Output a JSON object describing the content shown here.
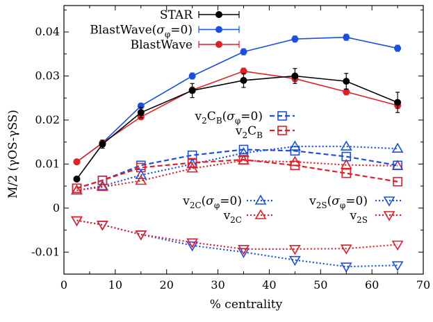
{
  "chart_data": {
    "type": "line",
    "xlabel": "% centrality",
    "ylabel": "M/2 (γOS-γSS)",
    "xlim": [
      0,
      70
    ],
    "ylim": [
      -0.015,
      0.046
    ],
    "x_ticks": [
      "0",
      "10",
      "20",
      "30",
      "40",
      "50",
      "60",
      "70"
    ],
    "y_ticks": [
      "-0.01",
      "0",
      "0.01",
      "0.02",
      "0.03",
      "0.04"
    ],
    "legend_top": [
      {
        "label": "STAR",
        "series": "STAR"
      },
      {
        "label": "BlastWave(σφ=0)",
        "series": "BW0"
      },
      {
        "label": "BlastWave",
        "series": "BW"
      }
    ],
    "legend_middle": [
      {
        "label": "v2CB(σφ=0)",
        "series": "CB0"
      },
      {
        "label": "v2CB",
        "series": "CB"
      }
    ],
    "legend_lower_left": [
      {
        "label": "v2C(σφ=0)",
        "series": "C0"
      },
      {
        "label": "v2C",
        "series": "C"
      }
    ],
    "legend_lower_right": [
      {
        "label": "v2S(σφ=0)",
        "series": "S0"
      },
      {
        "label": "v2S",
        "series": "S"
      }
    ],
    "series": [
      {
        "id": "STAR",
        "name": "STAR",
        "color": "#000000",
        "marker": "filled-circle",
        "line": "solid",
        "x": [
          2.5,
          7.5,
          15,
          25,
          35,
          45,
          55,
          65
        ],
        "y": [
          0.0066,
          0.0145,
          0.0217,
          0.0267,
          0.029,
          0.03,
          0.0288,
          0.024
        ],
        "err": [
          0.0003,
          0.0009,
          0.0012,
          0.0016,
          0.0016,
          0.0017,
          0.0018,
          0.0023
        ]
      },
      {
        "id": "BW0",
        "name": "BlastWave(σφ=0)",
        "color": "#1a4fe0",
        "marker": "filled-circle",
        "line": "solid",
        "x": [
          2.5,
          7.5,
          15,
          25,
          35,
          45,
          55,
          65
        ],
        "y": [
          0.0105,
          0.0148,
          0.0232,
          0.03,
          0.0355,
          0.0384,
          0.0388,
          0.0363
        ],
        "err": [
          0.0003,
          0.0005,
          0.0006,
          0.0007,
          0.0007,
          0.0007,
          0.0007,
          0.0007
        ]
      },
      {
        "id": "BW",
        "name": "BlastWave",
        "color": "#e01f26",
        "marker": "filled-circle",
        "line": "solid",
        "x": [
          2.5,
          7.5,
          15,
          25,
          35,
          45,
          55,
          65
        ],
        "y": [
          0.0105,
          0.0148,
          0.0207,
          0.0268,
          0.0311,
          0.0294,
          0.0264,
          0.0233
        ],
        "err": [
          0.0003,
          0.0005,
          0.0006,
          0.0007,
          0.0007,
          0.0007,
          0.0007,
          0.0007
        ]
      },
      {
        "id": "CB0",
        "name": "v2CB(σφ=0)",
        "color": "#1a4fe0",
        "marker": "open-square",
        "line": "dashed",
        "x": [
          2.5,
          7.5,
          15,
          25,
          35,
          45,
          55,
          65
        ],
        "y": [
          0.0045,
          0.0063,
          0.0097,
          0.012,
          0.0133,
          0.013,
          0.0117,
          0.0097
        ]
      },
      {
        "id": "CB",
        "name": "v2CB",
        "color": "#e01f26",
        "marker": "open-square",
        "line": "dashed",
        "x": [
          2.5,
          7.5,
          15,
          25,
          35,
          45,
          55,
          65
        ],
        "y": [
          0.0045,
          0.0063,
          0.0092,
          0.0103,
          0.011,
          0.0097,
          0.0079,
          0.006
        ]
      },
      {
        "id": "C0",
        "name": "v2C(σφ=0)",
        "color": "#1a4fe0",
        "marker": "open-triangle-up",
        "line": "dotted",
        "x": [
          2.5,
          7.5,
          15,
          25,
          35,
          45,
          55,
          65
        ],
        "y": [
          0.004,
          0.005,
          0.0075,
          0.01,
          0.0125,
          0.014,
          0.014,
          0.0135
        ]
      },
      {
        "id": "C",
        "name": "v2C",
        "color": "#e01f26",
        "marker": "open-triangle-up",
        "line": "dotted",
        "x": [
          2.5,
          7.5,
          15,
          25,
          35,
          45,
          55,
          65
        ],
        "y": [
          0.004,
          0.0048,
          0.0062,
          0.009,
          0.0108,
          0.0105,
          0.0098,
          0.0096
        ]
      },
      {
        "id": "S0",
        "name": "v2S(σφ=0)",
        "color": "#1a4fe0",
        "marker": "open-triangle-down",
        "line": "dotted",
        "x": [
          2.5,
          7.5,
          15,
          25,
          35,
          45,
          55,
          65
        ],
        "y": [
          -0.0028,
          -0.0038,
          -0.006,
          -0.0085,
          -0.01,
          -0.0118,
          -0.0133,
          -0.013
        ]
      },
      {
        "id": "S",
        "name": "v2S",
        "color": "#e01f26",
        "marker": "open-triangle-down",
        "line": "dotted",
        "x": [
          2.5,
          7.5,
          15,
          25,
          35,
          45,
          55,
          65
        ],
        "y": [
          -0.0028,
          -0.0038,
          -0.006,
          -0.0078,
          -0.0093,
          -0.0093,
          -0.0092,
          -0.0083
        ]
      }
    ]
  }
}
